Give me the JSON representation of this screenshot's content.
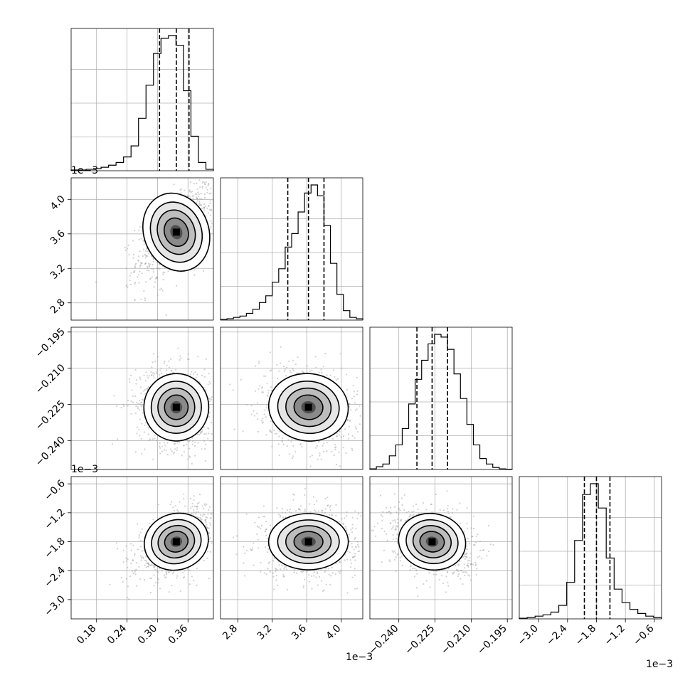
{
  "chart_data": {
    "type": "corner",
    "parameters": [
      {
        "range": [
          0.13,
          0.41
        ],
        "ticks": [
          "0.18",
          "0.24",
          "0.30",
          "0.36"
        ],
        "tick_values": [
          0.18,
          0.24,
          0.3,
          0.36
        ],
        "offset": "1e−3",
        "quantiles": [
          0.304,
          0.337,
          0.362
        ]
      },
      {
        "range": [
          2.6,
          4.25
        ],
        "ticks": [
          "2.8",
          "3.2",
          "3.6",
          "4.0"
        ],
        "tick_values": [
          2.8,
          3.2,
          3.6,
          4.0
        ],
        "offset": "1e−3",
        "quantiles": [
          3.38,
          3.62,
          3.8
        ]
      },
      {
        "range": [
          -0.252,
          -0.193
        ],
        "ticks": [
          "−0.240",
          "−0.225",
          "−0.210",
          "−0.195"
        ],
        "tick_values": [
          -0.24,
          -0.225,
          -0.21,
          -0.195
        ],
        "offset": "",
        "quantiles": [
          -0.2325,
          -0.2262,
          -0.2198
        ]
      },
      {
        "range": [
          -3.4,
          -0.45
        ],
        "ticks": [
          "−3.0",
          "−2.4",
          "−1.8",
          "−1.2",
          "−0.6"
        ],
        "tick_values": [
          -3.0,
          -2.4,
          -1.8,
          -1.2,
          -0.6
        ],
        "offset": "1e−3",
        "quantiles": [
          -2.05,
          -1.8,
          -1.52
        ]
      }
    ],
    "histograms": [
      {
        "counts": [
          0.5,
          0.5,
          1,
          1.5,
          2.5,
          4,
          6,
          10,
          18,
          38,
          62,
          85,
          96,
          98,
          91,
          58,
          25,
          6,
          1
        ]
      },
      {
        "counts": [
          0.5,
          1,
          2,
          3,
          5,
          8,
          13,
          18,
          28,
          38,
          54,
          64,
          80,
          94,
          100,
          92,
          70,
          42,
          19,
          7,
          2,
          1
        ]
      },
      {
        "counts": [
          0.5,
          2,
          4,
          10,
          18,
          30,
          48,
          66,
          80,
          92,
          99,
          97,
          88,
          70,
          52,
          33,
          18,
          8,
          4,
          1.5,
          0.5,
          0.2
        ]
      },
      {
        "counts": [
          0.5,
          1,
          2,
          3,
          5,
          10,
          27,
          58,
          92,
          100,
          82,
          45,
          22,
          12,
          7,
          4,
          2,
          1
        ]
      }
    ],
    "grid": true,
    "legend": "none"
  }
}
